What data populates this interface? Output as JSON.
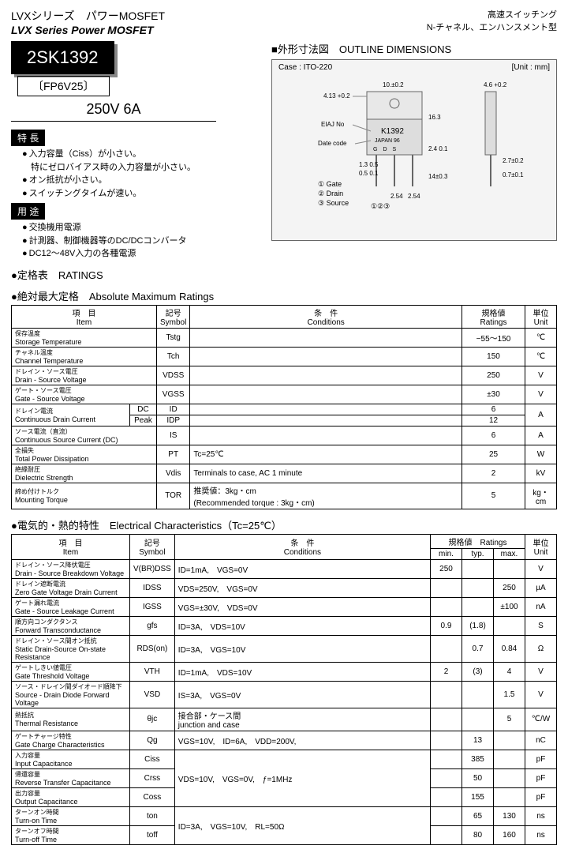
{
  "header": {
    "series_jp": "LVXシリーズ　パワーMOSFET",
    "series_en": "LVX Series Power MOSFET",
    "right1": "高速スイッチング",
    "right2": "N-チャネル、エンハンスメント型"
  },
  "part": {
    "number": "2SK1392",
    "code": "〔FP6V25〕",
    "rating": "250V 6A"
  },
  "features": {
    "label": "特 長",
    "items": [
      "入力容量（Ciss）が小さい。\n　特にゼロバイアス時の入力容量が小さい。",
      "オン抵抗が小さい。",
      "スイッチングタイムが速い。"
    ]
  },
  "applications": {
    "label": "用 途",
    "items": [
      "交換機用電源",
      "計測器、制御機器等のDC/DCコンバータ",
      "DC12～48V入力の各種電源"
    ]
  },
  "outline": {
    "title": "■外形寸法図　OUTLINE DIMENSIONS",
    "case": "Case : ITO-220",
    "unit": "[Unit : mm]",
    "pin_labels": [
      "① Gate",
      "② Drain",
      "③ Source"
    ],
    "marking": "K1392",
    "country": "JAPAN  96",
    "eiaj": "EIAJ No",
    "date": "Date code"
  },
  "ratings_section": "●定格表　RATINGS",
  "abs_max": {
    "title": "●絶対最大定格　Absolute Maximum Ratings",
    "headers": {
      "item": "項　目\nItem",
      "symbol": "記号\nSymbol",
      "conditions": "条　件\nConditions",
      "ratings": "規格値\nRatings",
      "unit": "単位\nUnit"
    },
    "rows": [
      {
        "jp": "保存温度",
        "en": "Storage Temperature",
        "sym": "Tstg",
        "cond": "",
        "rat": "−55〜150",
        "unit": "℃"
      },
      {
        "jp": "チャネル温度",
        "en": "Channel Temperature",
        "sym": "Tch",
        "cond": "",
        "rat": "150",
        "unit": "℃"
      },
      {
        "jp": "ドレイン・ソース電圧",
        "en": "Drain - Source Voltage",
        "sym": "VDSS",
        "cond": "",
        "rat": "250",
        "unit": "V"
      },
      {
        "jp": "ゲート・ソース電圧",
        "en": "Gate - Source Voltage",
        "sym": "VGSS",
        "cond": "",
        "rat": "±30",
        "unit": "V"
      },
      {
        "jp": "ドレイン電流",
        "en": "Continuous Drain Current",
        "sub1": "DC",
        "sym": "ID",
        "cond": "",
        "rat": "6",
        "unit": "A",
        "rowspan_unit": 2
      },
      {
        "jp": "",
        "en": "",
        "sub1": "Peak",
        "sym": "IDP",
        "cond": "",
        "rat": "12",
        "unit": ""
      },
      {
        "jp": "ソース電流（直流）",
        "en": "Continuous Source Current (DC)",
        "sym": "IS",
        "cond": "",
        "rat": "6",
        "unit": "A"
      },
      {
        "jp": "全損失",
        "en": "Total Power Dissipation",
        "sym": "PT",
        "cond": "Tc=25℃",
        "rat": "25",
        "unit": "W"
      },
      {
        "jp": "絶縁耐圧",
        "en": "Dielectric Strength",
        "sym": "Vdis",
        "cond": "Terminals to case, AC 1 minute",
        "rat": "2",
        "unit": "kV"
      },
      {
        "jp": "締め付けトルク",
        "en": "Mounting Torque",
        "sym": "TOR",
        "cond": "推奨値：3kg・cm\n(Recommended torque : 3kg・cm)",
        "rat": "5",
        "unit": "kg・cm"
      }
    ]
  },
  "elec": {
    "title": "●電気的・熱的特性　Electrical Characteristics（Tc=25℃）",
    "headers": {
      "item": "項　目\nItem",
      "symbol": "記号\nSymbol",
      "conditions": "条　件\nConditions",
      "ratings": "規格値　Ratings",
      "min": "min.",
      "typ": "typ.",
      "max": "max.",
      "unit": "単位\nUnit"
    },
    "rows": [
      {
        "jp": "ドレイン・ソース降伏電圧",
        "en": "Drain - Source Breakdown Voltage",
        "sym": "V(BR)DSS",
        "cond": "ID=1mA,　VGS=0V",
        "min": "250",
        "typ": "",
        "max": "",
        "unit": "V"
      },
      {
        "jp": "ドレイン遮断電流",
        "en": "Zero Gate Voltage Drain Current",
        "sym": "IDSS",
        "cond": "VDS=250V,　VGS=0V",
        "min": "",
        "typ": "",
        "max": "250",
        "unit": "µA"
      },
      {
        "jp": "ゲート漏れ電流",
        "en": "Gate - Source Leakage Current",
        "sym": "IGSS",
        "cond": "VGS=±30V,　VDS=0V",
        "min": "",
        "typ": "",
        "max": "±100",
        "unit": "nA"
      },
      {
        "jp": "順方向コンダクタンス",
        "en": "Forward Transconductance",
        "sym": "gfs",
        "cond": "ID=3A,　VDS=10V",
        "min": "0.9",
        "typ": "(1.8)",
        "max": "",
        "unit": "S"
      },
      {
        "jp": "ドレイン・ソース間オン抵抗",
        "en": "Static Drain-Source On-state Resistance",
        "sym": "RDS(on)",
        "cond": "ID=3A,　VGS=10V",
        "min": "",
        "typ": "0.7",
        "max": "0.84",
        "unit": "Ω"
      },
      {
        "jp": "ゲートしきい値電圧",
        "en": "Gate Threshold Voltage",
        "sym": "VTH",
        "cond": "ID=1mA,　VDS=10V",
        "min": "2",
        "typ": "(3)",
        "max": "4",
        "unit": "V"
      },
      {
        "jp": "ソース・ドレイン間ダイオード順降下",
        "en": "Source - Drain Diode Forward Voltage",
        "sym": "VSD",
        "cond": "IS=3A,　VGS=0V",
        "min": "",
        "typ": "",
        "max": "1.5",
        "unit": "V"
      },
      {
        "jp": "熱抵抗",
        "en": "Thermal Resistance",
        "sym": "θjc",
        "cond": "接合部・ケース間\njunction and case",
        "min": "",
        "typ": "",
        "max": "5",
        "unit": "℃/W"
      },
      {
        "jp": "ゲートチャージ特性",
        "en": "Gate Charge Characteristics",
        "sym": "Qg",
        "cond": "VGS=10V,　ID=6A,　VDD=200V,",
        "min": "",
        "typ": "13",
        "max": "",
        "unit": "nC"
      },
      {
        "jp": "入力容量",
        "en": "Input Capacitance",
        "sym": "Ciss",
        "cond_rowspan": 3,
        "cond": "VDS=10V,　VGS=0V,　ƒ=1MHz",
        "min": "",
        "typ": "385",
        "max": "",
        "unit": "pF"
      },
      {
        "jp": "帰還容量",
        "en": "Reverse Transfer Capacitance",
        "sym": "Crss",
        "min": "",
        "typ": "50",
        "max": "",
        "unit": "pF"
      },
      {
        "jp": "出力容量",
        "en": "Output Capacitance",
        "sym": "Coss",
        "min": "",
        "typ": "155",
        "max": "",
        "unit": "pF"
      },
      {
        "jp": "ターンオン時間",
        "en": "Turn-on Time",
        "sym": "ton",
        "cond_rowspan": 2,
        "cond": "ID=3A,　VGS=10V,　RL=50Ω",
        "min": "",
        "typ": "65",
        "max": "130",
        "unit": "ns"
      },
      {
        "jp": "ターンオフ時間",
        "en": "Turn-off Time",
        "sym": "toff",
        "min": "",
        "typ": "80",
        "max": "160",
        "unit": "ns"
      }
    ]
  }
}
